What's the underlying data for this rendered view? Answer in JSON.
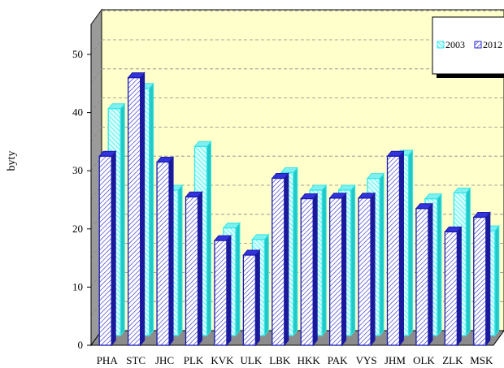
{
  "chart_data": {
    "type": "bar",
    "title": "",
    "xlabel": "",
    "ylabel": "byty",
    "ylim": [
      0,
      50
    ],
    "yticks": [
      0,
      10,
      20,
      30,
      40,
      50
    ],
    "grid": true,
    "legend_position": "top-right",
    "categories": [
      "PHA",
      "STC",
      "JHC",
      "PLK",
      "KVK",
      "ULK",
      "LBK",
      "HKK",
      "PAK",
      "VYS",
      "JHM",
      "OLK",
      "ZLK",
      "MSK"
    ],
    "series": [
      {
        "name": "2003",
        "color": "#33e6e6",
        "values": [
          39,
          42.5,
          25,
          32.5,
          18.5,
          16.5,
          28,
          25,
          25,
          27,
          31,
          23.5,
          24.5,
          18
        ]
      },
      {
        "name": "2012",
        "color": "#2222cc",
        "values": [
          32.5,
          46,
          31.5,
          25.5,
          18,
          15.5,
          28.7,
          25.2,
          25.3,
          25.3,
          32.5,
          23.5,
          19.5,
          22
        ]
      }
    ]
  }
}
